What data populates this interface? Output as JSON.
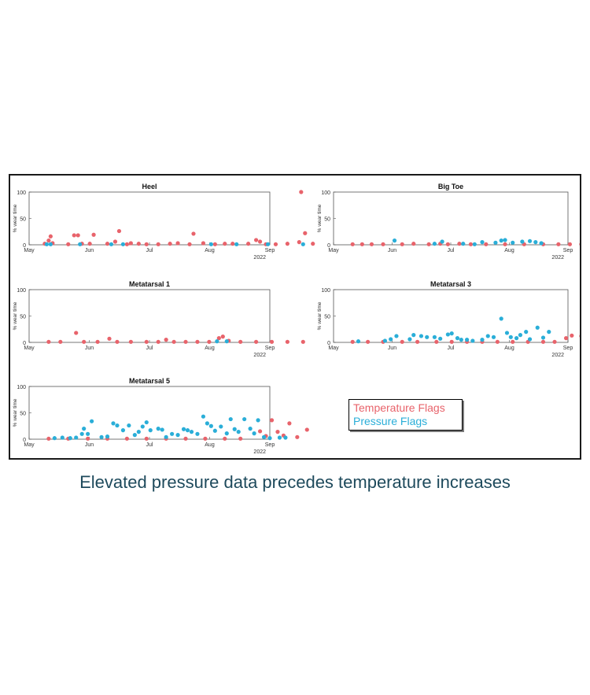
{
  "caption": "Elevated pressure data precedes temperature increases",
  "colors": {
    "temperature": "#e8636b",
    "pressure": "#2aaed8",
    "axis": "#555555",
    "title": "#111111"
  },
  "legend": {
    "temperature_label": "Temperature Flags",
    "pressure_label": "Pressure Flags"
  },
  "chart_data": [
    {
      "type": "scatter",
      "title": "Heel",
      "ylabel": "% wear time",
      "ylim": [
        0,
        100
      ],
      "yticks": [
        0,
        50,
        100
      ],
      "xticks": [
        "May",
        "Jun",
        "Jul",
        "Aug",
        "Sep"
      ],
      "year_label": "2022",
      "series": [
        {
          "name": "Temperature Flags",
          "points": [
            [
              8,
              2
            ],
            [
              10,
              8
            ],
            [
              11,
              16
            ],
            [
              12,
              3
            ],
            [
              20,
              1
            ],
            [
              23,
              18
            ],
            [
              25,
              18
            ],
            [
              27,
              2
            ],
            [
              31,
              2
            ],
            [
              33,
              19
            ],
            [
              40,
              2
            ],
            [
              44,
              6
            ],
            [
              46,
              26
            ],
            [
              50,
              1
            ],
            [
              52,
              3
            ],
            [
              56,
              2
            ],
            [
              60,
              1
            ],
            [
              66,
              1
            ],
            [
              72,
              2
            ],
            [
              76,
              3
            ],
            [
              82,
              1
            ],
            [
              84,
              21
            ],
            [
              89,
              3
            ],
            [
              95,
              1
            ],
            [
              100,
              2
            ],
            [
              104,
              2
            ],
            [
              112,
              2
            ],
            [
              116,
              9
            ],
            [
              118,
              6
            ],
            [
              121,
              1
            ],
            [
              126,
              1
            ],
            [
              132,
              2
            ],
            [
              138,
              5
            ],
            [
              139,
              100
            ],
            [
              141,
              22
            ],
            [
              145,
              2
            ]
          ]
        },
        {
          "name": "Pressure Flags",
          "points": [
            [
              9,
              1
            ],
            [
              11,
              1
            ],
            [
              26,
              1
            ],
            [
              42,
              1
            ],
            [
              48,
              1
            ],
            [
              93,
              1
            ],
            [
              106,
              1
            ],
            [
              122,
              1
            ],
            [
              140,
              1
            ]
          ]
        }
      ]
    },
    {
      "type": "scatter",
      "title": "Big Toe",
      "ylabel": "% wear time",
      "ylim": [
        0,
        100
      ],
      "yticks": [
        0,
        50,
        100
      ],
      "xticks": [
        "May",
        "Jun",
        "Jul",
        "Aug",
        "Sep"
      ],
      "year_label": "2022",
      "series": [
        {
          "name": "Temperature Flags",
          "points": [
            [
              10,
              1
            ],
            [
              15,
              1
            ],
            [
              20,
              1
            ],
            [
              26,
              1
            ],
            [
              36,
              1
            ],
            [
              42,
              2
            ],
            [
              50,
              1
            ],
            [
              56,
              2
            ],
            [
              60,
              1
            ],
            [
              66,
              2
            ],
            [
              72,
              1
            ],
            [
              80,
              1
            ],
            [
              90,
              1
            ],
            [
              100,
              1
            ],
            [
              110,
              1
            ],
            [
              118,
              1
            ],
            [
              124,
              1
            ],
            [
              130,
              1
            ],
            [
              136,
              1
            ],
            [
              142,
              1
            ]
          ]
        },
        {
          "name": "Pressure Flags",
          "points": [
            [
              32,
              8
            ],
            [
              53,
              2
            ],
            [
              57,
              6
            ],
            [
              68,
              2
            ],
            [
              74,
              1
            ],
            [
              78,
              5
            ],
            [
              85,
              4
            ],
            [
              88,
              8
            ],
            [
              90,
              9
            ],
            [
              94,
              4
            ],
            [
              99,
              6
            ],
            [
              103,
              7
            ],
            [
              106,
              5
            ],
            [
              109,
              3
            ]
          ]
        }
      ]
    },
    {
      "type": "scatter",
      "title": "Metatarsal 1",
      "ylabel": "% wear time",
      "ylim": [
        0,
        100
      ],
      "yticks": [
        0,
        50,
        100
      ],
      "xticks": [
        "May",
        "Jun",
        "Jul",
        "Aug",
        "Sep"
      ],
      "year_label": "2022",
      "series": [
        {
          "name": "Temperature Flags",
          "points": [
            [
              10,
              1
            ],
            [
              16,
              1
            ],
            [
              24,
              18
            ],
            [
              28,
              1
            ],
            [
              35,
              1
            ],
            [
              41,
              7
            ],
            [
              45,
              1
            ],
            [
              52,
              1
            ],
            [
              60,
              1
            ],
            [
              66,
              1
            ],
            [
              70,
              5
            ],
            [
              74,
              1
            ],
            [
              80,
              1
            ],
            [
              86,
              1
            ],
            [
              92,
              1
            ],
            [
              97,
              8
            ],
            [
              99,
              11
            ],
            [
              102,
              3
            ],
            [
              108,
              1
            ],
            [
              116,
              1
            ],
            [
              124,
              1
            ],
            [
              132,
              1
            ],
            [
              140,
              1
            ]
          ]
        },
        {
          "name": "Pressure Flags",
          "points": [
            [
              96,
              2
            ],
            [
              101,
              2
            ]
          ]
        }
      ]
    },
    {
      "type": "scatter",
      "title": "Metatarsal 3",
      "ylabel": "% wear time",
      "ylim": [
        0,
        100
      ],
      "yticks": [
        0,
        50,
        100
      ],
      "xticks": [
        "May",
        "Jun",
        "Jul",
        "Aug",
        "Sep"
      ],
      "year_label": "2022",
      "series": [
        {
          "name": "Temperature Flags",
          "points": [
            [
              10,
              1
            ],
            [
              18,
              1
            ],
            [
              26,
              1
            ],
            [
              36,
              1
            ],
            [
              44,
              1
            ],
            [
              54,
              1
            ],
            [
              62,
              1
            ],
            [
              70,
              1
            ],
            [
              78,
              1
            ],
            [
              86,
              1
            ],
            [
              94,
              1
            ],
            [
              102,
              1
            ],
            [
              110,
              1
            ],
            [
              116,
              1
            ],
            [
              122,
              8
            ],
            [
              125,
              13
            ],
            [
              130,
              12
            ],
            [
              135,
              9
            ],
            [
              138,
              8
            ],
            [
              142,
              22
            ]
          ]
        },
        {
          "name": "Pressure Flags",
          "points": [
            [
              13,
              2
            ],
            [
              27,
              3
            ],
            [
              30,
              6
            ],
            [
              33,
              12
            ],
            [
              40,
              6
            ],
            [
              42,
              14
            ],
            [
              46,
              12
            ],
            [
              49,
              10
            ],
            [
              53,
              10
            ],
            [
              56,
              7
            ],
            [
              60,
              15
            ],
            [
              62,
              17
            ],
            [
              65,
              8
            ],
            [
              67,
              5
            ],
            [
              70,
              5
            ],
            [
              73,
              3
            ],
            [
              78,
              5
            ],
            [
              81,
              12
            ],
            [
              84,
              10
            ],
            [
              88,
              45
            ],
            [
              91,
              18
            ],
            [
              93,
              10
            ],
            [
              96,
              8
            ],
            [
              98,
              14
            ],
            [
              101,
              20
            ],
            [
              103,
              6
            ],
            [
              107,
              28
            ],
            [
              110,
              9
            ],
            [
              113,
              20
            ],
            [
              141,
              2
            ]
          ]
        }
      ]
    },
    {
      "type": "scatter",
      "title": "Metatarsal 5",
      "ylabel": "% wear time",
      "ylim": [
        0,
        100
      ],
      "yticks": [
        0,
        50,
        100
      ],
      "xticks": [
        "May",
        "Jun",
        "Jul",
        "Aug",
        "Sep"
      ],
      "year_label": "2022",
      "series": [
        {
          "name": "Temperature Flags",
          "points": [
            [
              10,
              1
            ],
            [
              20,
              1
            ],
            [
              30,
              1
            ],
            [
              40,
              1
            ],
            [
              50,
              1
            ],
            [
              60,
              1
            ],
            [
              70,
              1
            ],
            [
              80,
              1
            ],
            [
              90,
              1
            ],
            [
              100,
              1
            ],
            [
              108,
              1
            ],
            [
              118,
              15
            ],
            [
              121,
              6
            ],
            [
              124,
              36
            ],
            [
              127,
              14
            ],
            [
              130,
              7
            ],
            [
              133,
              30
            ],
            [
              137,
              4
            ],
            [
              142,
              18
            ]
          ]
        },
        {
          "name": "Pressure Flags",
          "points": [
            [
              13,
              2
            ],
            [
              17,
              3
            ],
            [
              21,
              2
            ],
            [
              24,
              3
            ],
            [
              27,
              10
            ],
            [
              28,
              20
            ],
            [
              30,
              10
            ],
            [
              32,
              34
            ],
            [
              37,
              4
            ],
            [
              40,
              5
            ],
            [
              43,
              30
            ],
            [
              45,
              26
            ],
            [
              48,
              17
            ],
            [
              51,
              26
            ],
            [
              54,
              8
            ],
            [
              56,
              14
            ],
            [
              58,
              24
            ],
            [
              60,
              32
            ],
            [
              62,
              17
            ],
            [
              66,
              20
            ],
            [
              68,
              18
            ],
            [
              70,
              4
            ],
            [
              73,
              10
            ],
            [
              76,
              8
            ],
            [
              79,
              19
            ],
            [
              81,
              17
            ],
            [
              83,
              14
            ],
            [
              86,
              10
            ],
            [
              89,
              43
            ],
            [
              91,
              30
            ],
            [
              93,
              25
            ],
            [
              95,
              16
            ],
            [
              98,
              24
            ],
            [
              101,
              11
            ],
            [
              103,
              38
            ],
            [
              105,
              19
            ],
            [
              107,
              14
            ],
            [
              110,
              38
            ],
            [
              113,
              20
            ],
            [
              115,
              11
            ],
            [
              117,
              36
            ],
            [
              120,
              4
            ],
            [
              123,
              2
            ],
            [
              128,
              3
            ],
            [
              131,
              3
            ]
          ]
        }
      ]
    }
  ]
}
